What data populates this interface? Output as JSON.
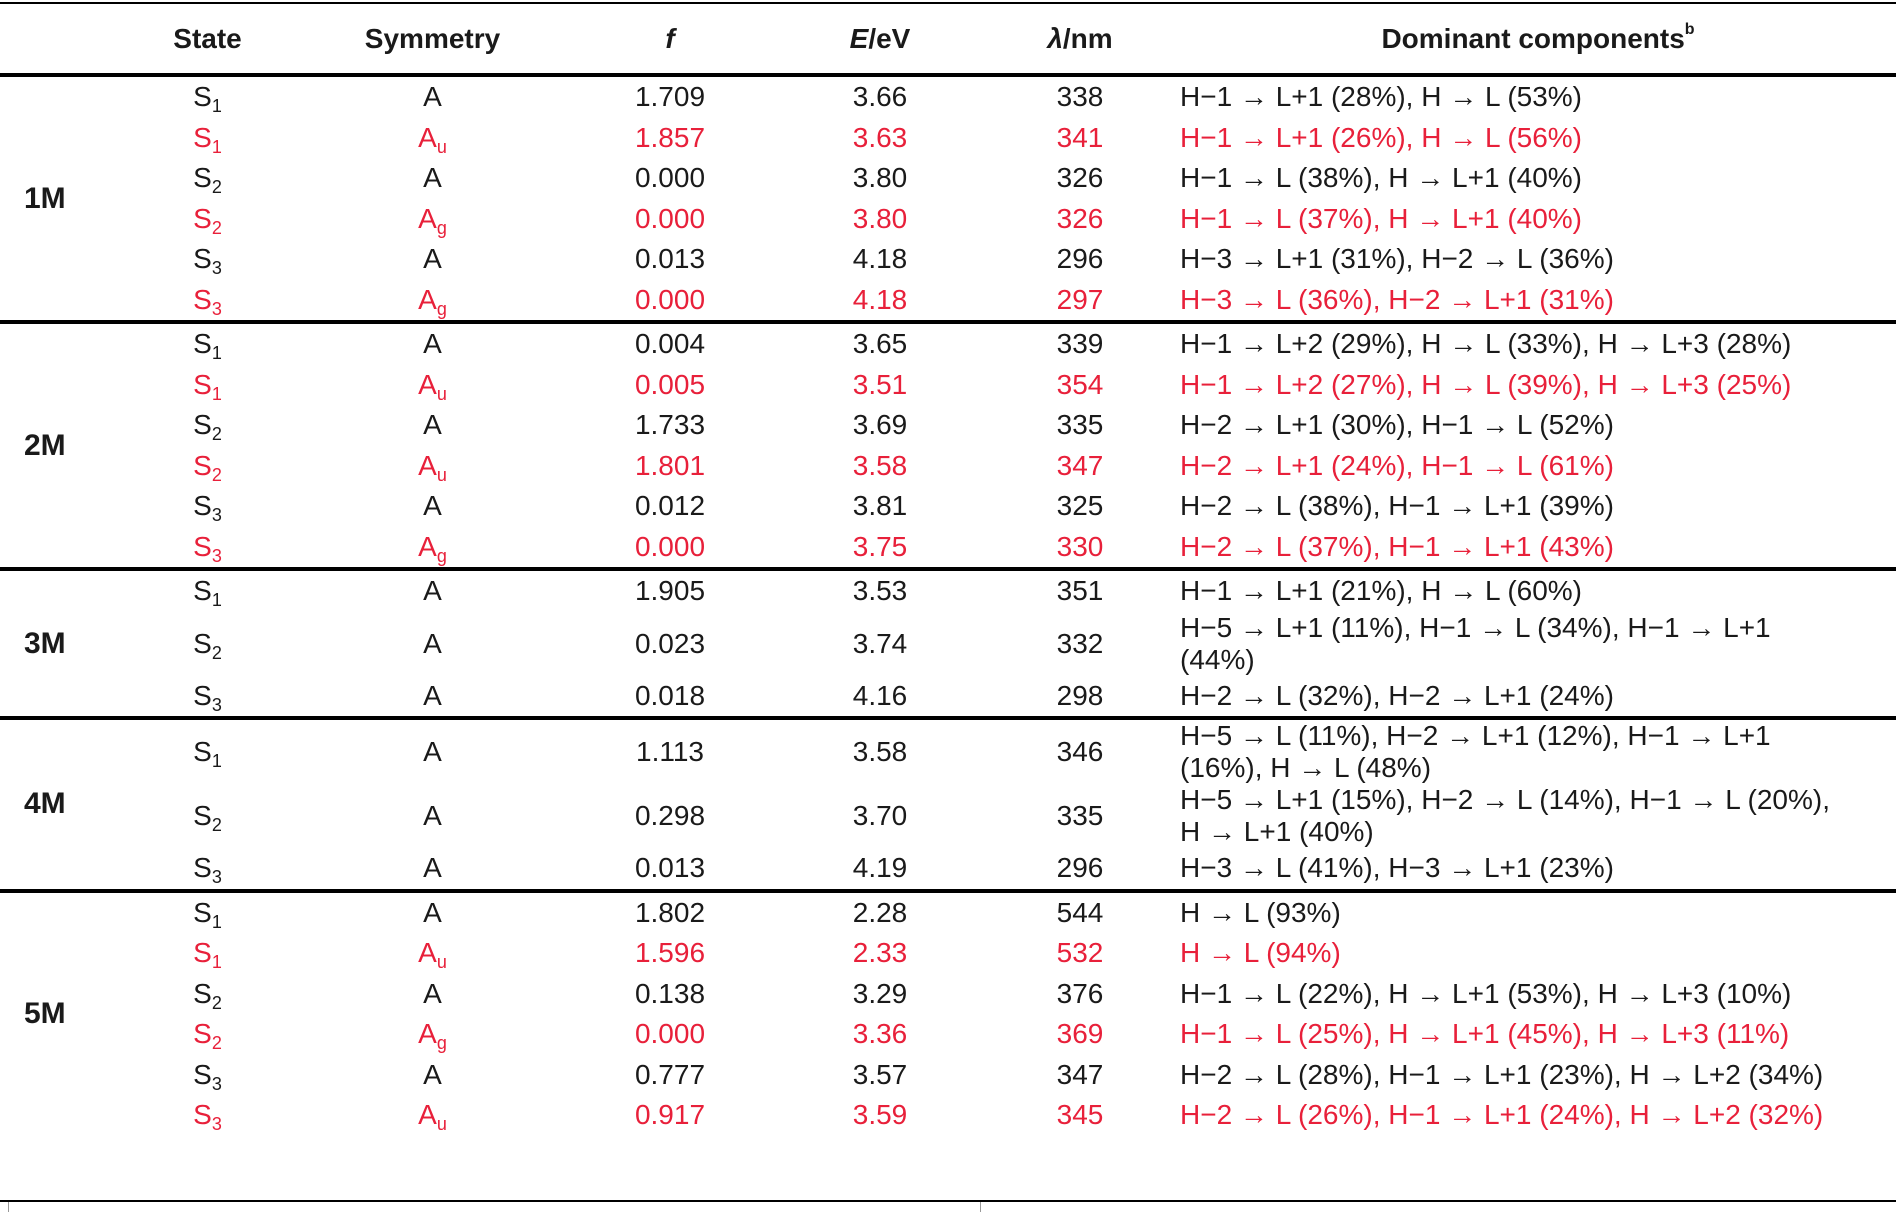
{
  "headers": {
    "state": "State",
    "symmetry": "Symmetry",
    "f": "f",
    "energy_var": "E",
    "energy_unit": "/eV",
    "lambda_var": "λ",
    "lambda_unit": "/nm",
    "components": "Dominant components",
    "components_note": "b"
  },
  "colors": {
    "highlight": "#e8203a",
    "text": "#1a1a1a"
  },
  "groups": [
    {
      "molecule": "1M",
      "rows": [
        {
          "state": "S",
          "state_sub": "1",
          "sym": "A",
          "sym_sub": "",
          "f": "1.709",
          "e": "3.66",
          "lambda": "338",
          "components": [
            "H−1 → L+1 (28%), H → L (53%)"
          ],
          "red": false
        },
        {
          "state": "S",
          "state_sub": "1",
          "sym": "A",
          "sym_sub": "u",
          "f": "1.857",
          "e": "3.63",
          "lambda": "341",
          "components": [
            "H−1 → L+1 (26%), H → L (56%)"
          ],
          "red": true
        },
        {
          "state": "S",
          "state_sub": "2",
          "sym": "A",
          "sym_sub": "",
          "f": "0.000",
          "e": "3.80",
          "lambda": "326",
          "components": [
            "H−1 → L (38%), H → L+1 (40%)"
          ],
          "red": false
        },
        {
          "state": "S",
          "state_sub": "2",
          "sym": "A",
          "sym_sub": "g",
          "f": "0.000",
          "e": "3.80",
          "lambda": "326",
          "components": [
            "H−1 → L (37%), H → L+1 (40%)"
          ],
          "red": true
        },
        {
          "state": "S",
          "state_sub": "3",
          "sym": "A",
          "sym_sub": "",
          "f": "0.013",
          "e": "4.18",
          "lambda": "296",
          "components": [
            "H−3 → L+1 (31%), H−2 → L (36%)"
          ],
          "red": false
        },
        {
          "state": "S",
          "state_sub": "3",
          "sym": "A",
          "sym_sub": "g",
          "f": "0.000",
          "e": "4.18",
          "lambda": "297",
          "components": [
            "H−3 → L (36%), H−2 → L+1 (31%)"
          ],
          "red": true
        }
      ]
    },
    {
      "molecule": "2M",
      "rows": [
        {
          "state": "S",
          "state_sub": "1",
          "sym": "A",
          "sym_sub": "",
          "f": "0.004",
          "e": "3.65",
          "lambda": "339",
          "components": [
            "H−1 → L+2 (29%), H → L (33%), H → L+3 (28%)"
          ],
          "red": false
        },
        {
          "state": "S",
          "state_sub": "1",
          "sym": "A",
          "sym_sub": "u",
          "f": "0.005",
          "e": "3.51",
          "lambda": "354",
          "components": [
            "H−1 → L+2 (27%), H → L (39%), H → L+3 (25%)"
          ],
          "red": true
        },
        {
          "state": "S",
          "state_sub": "2",
          "sym": "A",
          "sym_sub": "",
          "f": "1.733",
          "e": "3.69",
          "lambda": "335",
          "components": [
            "H−2 → L+1 (30%), H−1 → L (52%)"
          ],
          "red": false
        },
        {
          "state": "S",
          "state_sub": "2",
          "sym": "A",
          "sym_sub": "u",
          "f": "1.801",
          "e": "3.58",
          "lambda": "347",
          "components": [
            "H−2 → L+1 (24%), H−1 → L (61%)"
          ],
          "red": true
        },
        {
          "state": "S",
          "state_sub": "3",
          "sym": "A",
          "sym_sub": "",
          "f": "0.012",
          "e": "3.81",
          "lambda": "325",
          "components": [
            "H−2 → L (38%), H−1 → L+1 (39%)"
          ],
          "red": false
        },
        {
          "state": "S",
          "state_sub": "3",
          "sym": "A",
          "sym_sub": "g",
          "f": "0.000",
          "e": "3.75",
          "lambda": "330",
          "components": [
            "H−2 → L (37%), H−1 → L+1 (43%)"
          ],
          "red": true
        }
      ]
    },
    {
      "molecule": "3M",
      "rows": [
        {
          "state": "S",
          "state_sub": "1",
          "sym": "A",
          "sym_sub": "",
          "f": "1.905",
          "e": "3.53",
          "lambda": "351",
          "components": [
            "H−1 → L+1 (21%), H → L (60%)"
          ],
          "red": false
        },
        {
          "state": "S",
          "state_sub": "2",
          "sym": "A",
          "sym_sub": "",
          "f": "0.023",
          "e": "3.74",
          "lambda": "332",
          "components": [
            "H−5 → L+1 (11%), H−1 → L (34%), H−1 → L+1",
            "(44%)"
          ],
          "red": false
        },
        {
          "state": "S",
          "state_sub": "3",
          "sym": "A",
          "sym_sub": "",
          "f": "0.018",
          "e": "4.16",
          "lambda": "298",
          "components": [
            "H−2 → L (32%), H−2 → L+1 (24%)"
          ],
          "red": false
        }
      ]
    },
    {
      "molecule": "4M",
      "rows": [
        {
          "state": "S",
          "state_sub": "1",
          "sym": "A",
          "sym_sub": "",
          "f": "1.113",
          "e": "3.58",
          "lambda": "346",
          "components": [
            "H−5 → L (11%), H−2 → L+1 (12%), H−1 → L+1",
            "(16%), H → L (48%)"
          ],
          "red": false
        },
        {
          "state": "S",
          "state_sub": "2",
          "sym": "A",
          "sym_sub": "",
          "f": "0.298",
          "e": "3.70",
          "lambda": "335",
          "components": [
            "H−5 → L+1 (15%), H−2 → L (14%), H−1 → L (20%),",
            "H → L+1 (40%)"
          ],
          "red": false
        },
        {
          "state": "S",
          "state_sub": "3",
          "sym": "A",
          "sym_sub": "",
          "f": "0.013",
          "e": "4.19",
          "lambda": "296",
          "components": [
            "H−3 → L (41%), H−3 → L+1 (23%)"
          ],
          "red": false
        }
      ]
    },
    {
      "molecule": "5M",
      "rows": [
        {
          "state": "S",
          "state_sub": "1",
          "sym": "A",
          "sym_sub": "",
          "f": "1.802",
          "e": "2.28",
          "lambda": "544",
          "components": [
            "H → L (93%)"
          ],
          "red": false
        },
        {
          "state": "S",
          "state_sub": "1",
          "sym": "A",
          "sym_sub": "u",
          "f": "1.596",
          "e": "2.33",
          "lambda": "532",
          "components": [
            "H → L (94%)"
          ],
          "red": true
        },
        {
          "state": "S",
          "state_sub": "2",
          "sym": "A",
          "sym_sub": "",
          "f": "0.138",
          "e": "3.29",
          "lambda": "376",
          "components": [
            "H−1 → L (22%), H → L+1 (53%), H → L+3 (10%)"
          ],
          "red": false
        },
        {
          "state": "S",
          "state_sub": "2",
          "sym": "A",
          "sym_sub": "g",
          "f": "0.000",
          "e": "3.36",
          "lambda": "369",
          "components": [
            "H−1 → L (25%), H → L+1 (45%), H → L+3 (11%)"
          ],
          "red": true
        },
        {
          "state": "S",
          "state_sub": "3",
          "sym": "A",
          "sym_sub": "",
          "f": "0.777",
          "e": "3.57",
          "lambda": "347",
          "components": [
            "H−2 → L (28%), H−1 → L+1 (23%), H → L+2 (34%)"
          ],
          "red": false
        },
        {
          "state": "S",
          "state_sub": "3",
          "sym": "A",
          "sym_sub": "u",
          "f": "0.917",
          "e": "3.59",
          "lambda": "345",
          "components": [
            "H−2 → L (26%), H−1 → L+1 (24%), H → L+2 (32%)"
          ],
          "red": true
        }
      ]
    }
  ]
}
